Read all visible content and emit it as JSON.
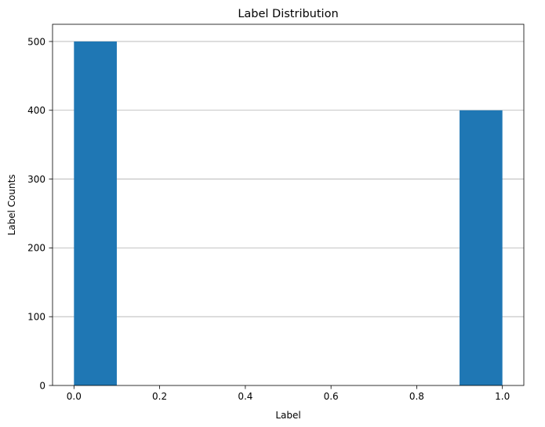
{
  "chart_data": {
    "type": "bar",
    "title": "Label Distribution",
    "xlabel": "Label",
    "ylabel": "Label Counts",
    "xlim": [
      -0.05,
      1.05
    ],
    "ylim": [
      0,
      525
    ],
    "grid": "y",
    "bars": [
      {
        "x_start": 0.0,
        "x_end": 0.1,
        "value": 500
      },
      {
        "x_start": 0.9,
        "x_end": 1.0,
        "value": 400
      }
    ],
    "xticks": [
      {
        "value": 0.0,
        "label": "0.0"
      },
      {
        "value": 0.2,
        "label": "0.2"
      },
      {
        "value": 0.4,
        "label": "0.4"
      },
      {
        "value": 0.6,
        "label": "0.6"
      },
      {
        "value": 0.8,
        "label": "0.8"
      },
      {
        "value": 1.0,
        "label": "1.0"
      }
    ],
    "yticks": [
      {
        "value": 0,
        "label": "0"
      },
      {
        "value": 100,
        "label": "100"
      },
      {
        "value": 200,
        "label": "200"
      },
      {
        "value": 300,
        "label": "300"
      },
      {
        "value": 400,
        "label": "400"
      },
      {
        "value": 500,
        "label": "500"
      }
    ],
    "colors": {
      "bar": "#1f77b4",
      "grid": "#b0b0b0",
      "axis": "#000000"
    }
  }
}
